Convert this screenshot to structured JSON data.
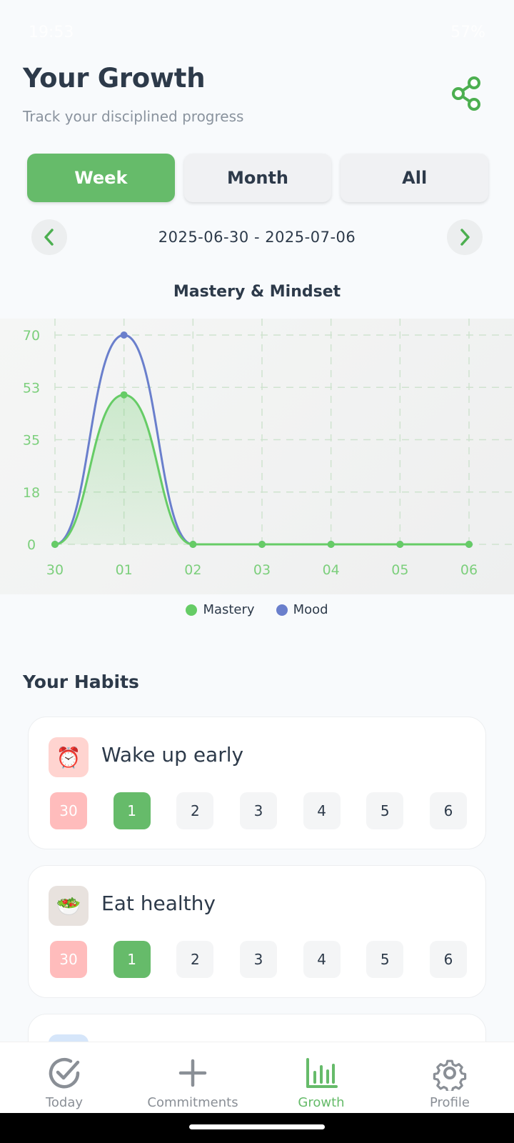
{
  "status": {
    "time": "19:53",
    "battery": "57%"
  },
  "header": {
    "title": "Your Growth",
    "subtitle": "Track your disciplined progress"
  },
  "period_tabs": [
    {
      "label": "Week",
      "active": true
    },
    {
      "label": "Month",
      "active": false
    },
    {
      "label": "All",
      "active": false
    }
  ],
  "date_range": "2025-06-30 - 2025-07-06",
  "chart_data": {
    "type": "line",
    "title": "Mastery & Mindset",
    "x": [
      "30",
      "01",
      "02",
      "03",
      "04",
      "05",
      "06"
    ],
    "y_ticks": [
      "0",
      "18",
      "35",
      "53",
      "70"
    ],
    "ylim": [
      0,
      70
    ],
    "grid": true,
    "legend_position": "bottom-center",
    "series": [
      {
        "name": "Mastery",
        "color": "#66cc66",
        "values": [
          0,
          50,
          0,
          0,
          0,
          0,
          0
        ],
        "filled": true
      },
      {
        "name": "Mood",
        "color": "#6a7fcc",
        "values": [
          0,
          70,
          0,
          0,
          0,
          0,
          0
        ],
        "filled": false
      }
    ]
  },
  "habits_section": {
    "title": "Your Habits",
    "habits": [
      {
        "name": "Wake up early",
        "icon": "alarm-clock-icon",
        "emoji": "⏰",
        "icon_bg": "#ffd4d0",
        "days": [
          {
            "label": "30",
            "state": "missed"
          },
          {
            "label": "1",
            "state": "done"
          },
          {
            "label": "2",
            "state": "pending"
          },
          {
            "label": "3",
            "state": "pending"
          },
          {
            "label": "4",
            "state": "pending"
          },
          {
            "label": "5",
            "state": "pending"
          },
          {
            "label": "6",
            "state": "pending"
          }
        ]
      },
      {
        "name": "Eat healthy",
        "icon": "salad-bowl-icon",
        "emoji": "🥗",
        "icon_bg": "#e8e2de",
        "days": [
          {
            "label": "30",
            "state": "missed"
          },
          {
            "label": "1",
            "state": "done"
          },
          {
            "label": "2",
            "state": "pending"
          },
          {
            "label": "3",
            "state": "pending"
          },
          {
            "label": "4",
            "state": "pending"
          },
          {
            "label": "5",
            "state": "pending"
          },
          {
            "label": "6",
            "state": "pending"
          }
        ]
      }
    ]
  },
  "bottom_nav": [
    {
      "label": "Today",
      "icon": "check-circle-icon",
      "active": false
    },
    {
      "label": "Commitments",
      "icon": "plus-icon",
      "active": false
    },
    {
      "label": "Growth",
      "icon": "bar-chart-icon",
      "active": true
    },
    {
      "label": "Profile",
      "icon": "gear-icon",
      "active": false
    }
  ],
  "colors": {
    "accent": "#66bb6a",
    "missed": "#ffbcbc",
    "text": "#2d3a4a"
  }
}
